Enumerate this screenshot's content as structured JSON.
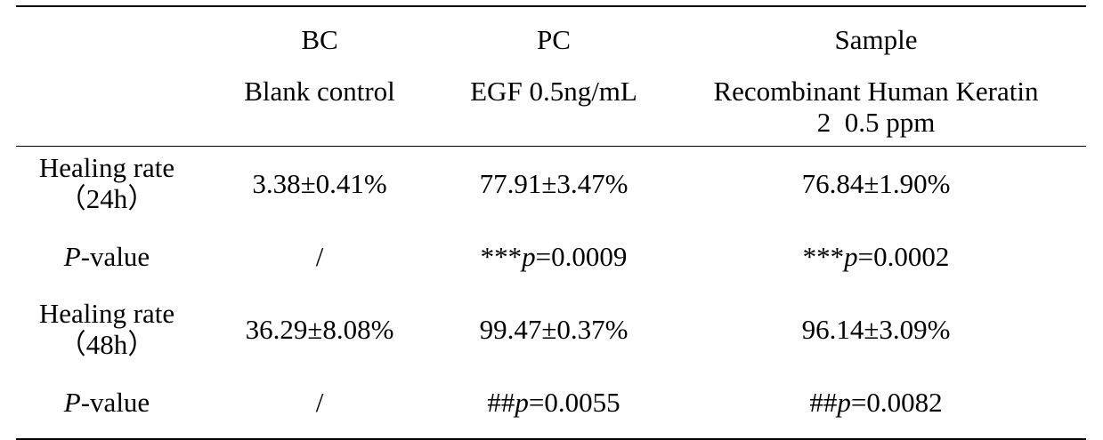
{
  "table": {
    "header_codes": [
      "",
      "BC",
      "PC",
      "Sample"
    ],
    "header_names": [
      "",
      "Blank control",
      "EGF 0.5ng/mL",
      "Recombinant Human Keratin",
      "2  0.5 ppm"
    ],
    "rows": [
      {
        "label_line1": "Healing rate",
        "label_line2": "（24h）",
        "bc": "3.38±0.41%",
        "pc": "77.91±3.47%",
        "sample": "76.84±1.90%"
      },
      {
        "label_italic": "P",
        "label_rest": "-value",
        "bc": "/",
        "pc_prefix": "***",
        "pc_italic": "p",
        "pc_value": "=0.0009",
        "sample_prefix": "***",
        "sample_italic": "p",
        "sample_value": "=0.0002"
      },
      {
        "label_line1": "Healing rate",
        "label_line2": "（48h）",
        "bc": "36.29±8.08%",
        "pc": "99.47±0.37%",
        "sample": "96.14±3.09%"
      },
      {
        "label_italic": "P",
        "label_rest": "-value",
        "bc": "/",
        "pc_prefix": "##",
        "pc_italic": "p",
        "pc_value": "=0.0055",
        "sample_prefix": "##",
        "sample_italic": "p",
        "sample_value": "=0.0082"
      }
    ]
  }
}
